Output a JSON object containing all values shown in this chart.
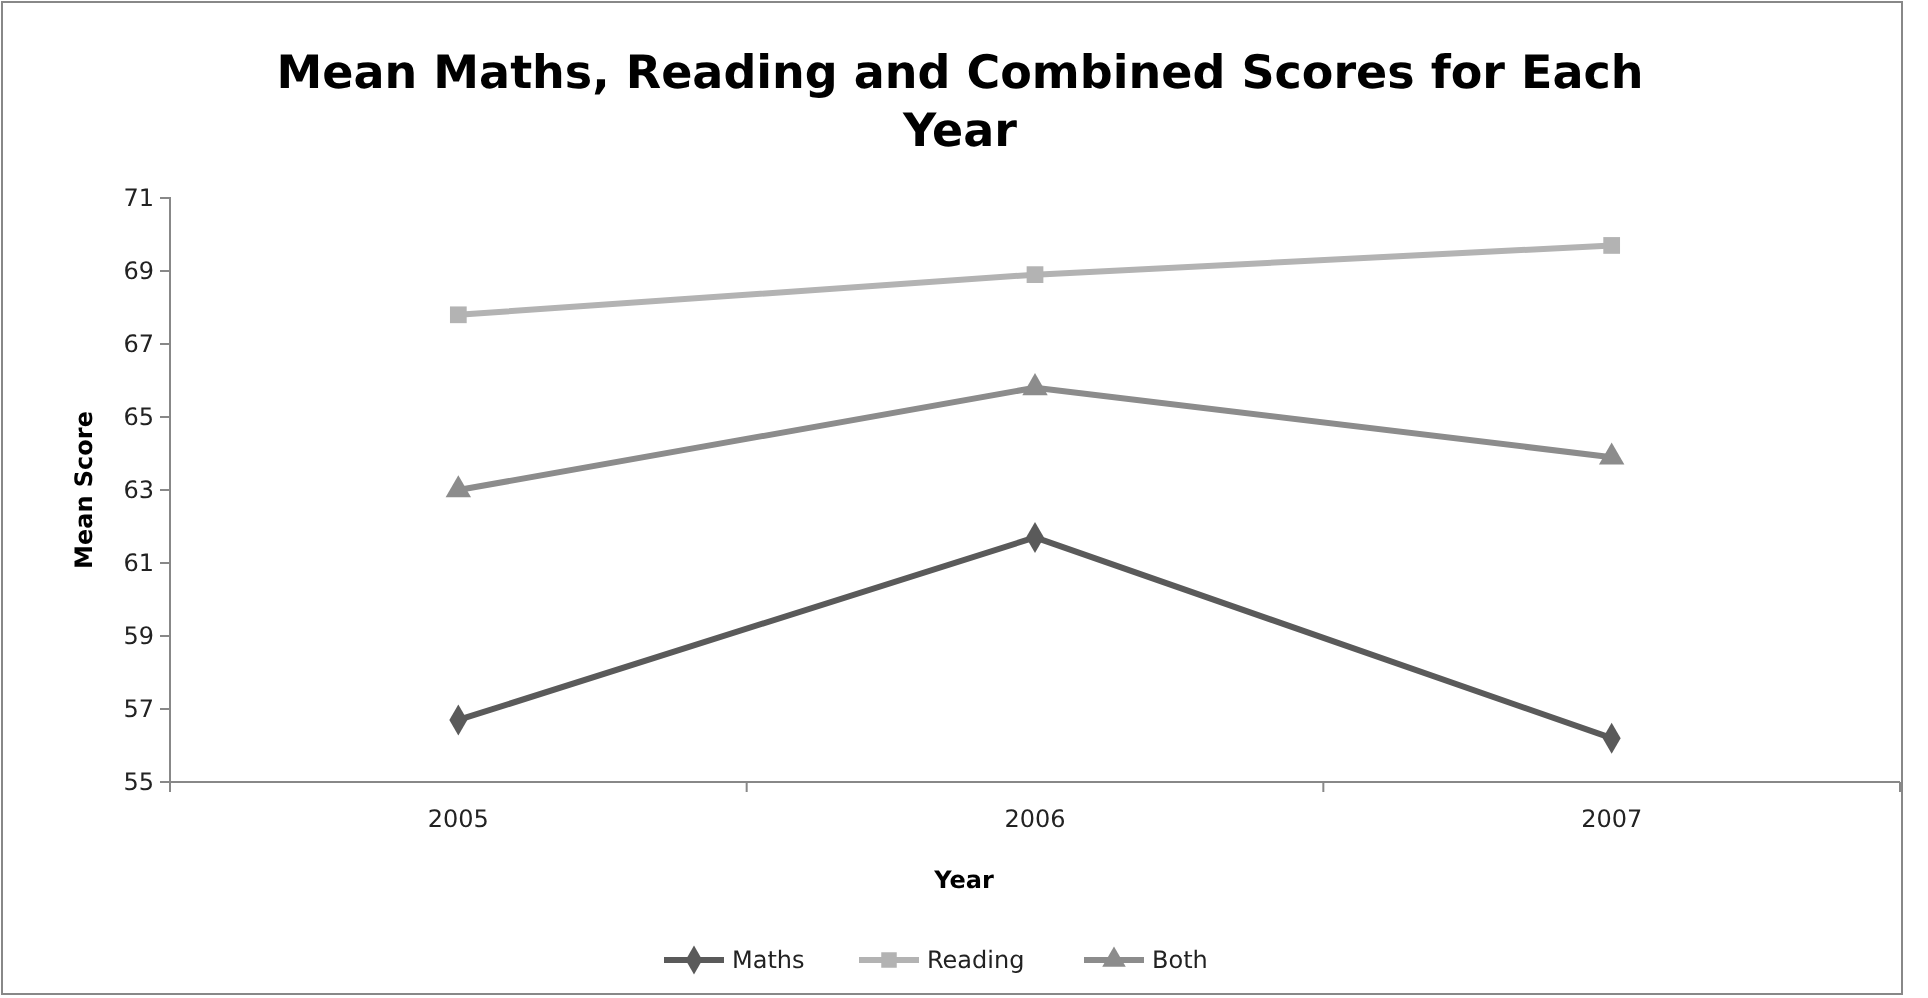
{
  "chart_data": {
    "type": "line",
    "title": "Mean Maths, Reading and Combined Scores for Each Year",
    "xlabel": "Year",
    "ylabel": "Mean Score",
    "categories": [
      "2005",
      "2006",
      "2007"
    ],
    "series": [
      {
        "name": "Maths",
        "color": "#5a5a5a",
        "marker": "diamond",
        "values": [
          56.7,
          61.7,
          56.2
        ]
      },
      {
        "name": "Reading",
        "color": "#b3b3b3",
        "marker": "square",
        "values": [
          67.8,
          68.9,
          69.7
        ]
      },
      {
        "name": "Both",
        "color": "#8c8c8c",
        "marker": "triangle",
        "values": [
          63.0,
          65.8,
          63.9
        ]
      }
    ],
    "ylim": [
      55,
      71
    ],
    "yticks": [
      55,
      57,
      59,
      61,
      63,
      65,
      67,
      69,
      71
    ],
    "grid": false,
    "legend": "bottom",
    "line_style": "solid"
  }
}
